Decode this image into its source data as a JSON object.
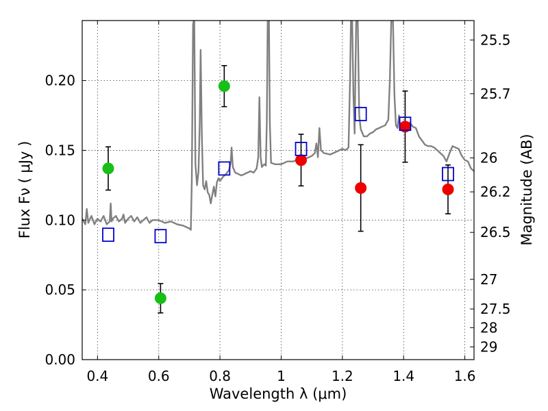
{
  "chart_data": {
    "type": "scatter",
    "xlabel": "Wavelength  λ (μm)",
    "ylabel": "Flux  Fν  ( μJy )",
    "y2label": "Magnitude (AB)",
    "xlim": [
      0.35,
      1.63
    ],
    "ylim": [
      0.0,
      0.243
    ],
    "grid": true,
    "x_ticks": [
      0.4,
      0.6,
      0.8,
      1.0,
      1.2,
      1.4,
      1.6
    ],
    "x_tick_labels": [
      "0.4",
      "0.6",
      "0.8",
      "1",
      "1.2",
      "1.4",
      "1.6"
    ],
    "y_ticks": [
      0.0,
      0.05,
      0.1,
      0.15,
      0.2
    ],
    "y_tick_labels": [
      "0.00",
      "0.05",
      "0.10",
      "0.15",
      "0.20"
    ],
    "mag_ticks": [
      25.5,
      25.7,
      26,
      26.2,
      26.5,
      27,
      27.5,
      28,
      29
    ],
    "colors": {
      "spectrum": "#808080",
      "green": "#17bf17",
      "red": "#ee0000",
      "model": "#0000cc",
      "errorbar": "#000000"
    },
    "series": [
      {
        "marker": "circle",
        "color": "#17bf17",
        "points": [
          {
            "x": 0.435,
            "y": 0.137,
            "err": 0.0155
          },
          {
            "x": 0.606,
            "y": 0.044,
            "err": 0.0105
          },
          {
            "x": 0.814,
            "y": 0.196,
            "err": 0.0147
          }
        ]
      },
      {
        "marker": "circle",
        "color": "#ee0000",
        "points": [
          {
            "x": 1.065,
            "y": 0.143,
            "err": 0.0185
          },
          {
            "x": 1.26,
            "y": 0.123,
            "err": 0.031
          },
          {
            "x": 1.405,
            "y": 0.167,
            "err": 0.0255
          },
          {
            "x": 1.545,
            "y": 0.122,
            "err": 0.0175
          }
        ]
      },
      {
        "marker": "square-open",
        "color": "#0000cc",
        "points": [
          {
            "x": 0.435,
            "y": 0.0895
          },
          {
            "x": 0.606,
            "y": 0.0885
          },
          {
            "x": 0.814,
            "y": 0.137
          },
          {
            "x": 1.065,
            "y": 0.151
          },
          {
            "x": 1.26,
            "y": 0.176
          },
          {
            "x": 1.405,
            "y": 0.169
          },
          {
            "x": 1.545,
            "y": 0.133
          }
        ]
      }
    ],
    "spectrum": [
      [
        0.35,
        0.101
      ],
      [
        0.36,
        0.097
      ],
      [
        0.365,
        0.108
      ],
      [
        0.37,
        0.098
      ],
      [
        0.38,
        0.103
      ],
      [
        0.39,
        0.097
      ],
      [
        0.4,
        0.101
      ],
      [
        0.41,
        0.099
      ],
      [
        0.42,
        0.103
      ],
      [
        0.43,
        0.097
      ],
      [
        0.44,
        0.099
      ],
      [
        0.443,
        0.112
      ],
      [
        0.446,
        0.099
      ],
      [
        0.45,
        0.101
      ],
      [
        0.46,
        0.103
      ],
      [
        0.47,
        0.099
      ],
      [
        0.48,
        0.101
      ],
      [
        0.485,
        0.104
      ],
      [
        0.49,
        0.098
      ],
      [
        0.5,
        0.101
      ],
      [
        0.51,
        0.103
      ],
      [
        0.52,
        0.099
      ],
      [
        0.53,
        0.102
      ],
      [
        0.54,
        0.098
      ],
      [
        0.55,
        0.1
      ],
      [
        0.56,
        0.102
      ],
      [
        0.57,
        0.098
      ],
      [
        0.58,
        0.1
      ],
      [
        0.6,
        0.1
      ],
      [
        0.62,
        0.098
      ],
      [
        0.64,
        0.099
      ],
      [
        0.66,
        0.097
      ],
      [
        0.68,
        0.096
      ],
      [
        0.69,
        0.095
      ],
      [
        0.7,
        0.094
      ],
      [
        0.705,
        0.093
      ],
      [
        0.708,
        0.128
      ],
      [
        0.712,
        0.24
      ],
      [
        0.716,
        0.245
      ],
      [
        0.72,
        0.14
      ],
      [
        0.725,
        0.125
      ],
      [
        0.73,
        0.135
      ],
      [
        0.734,
        0.17
      ],
      [
        0.737,
        0.222
      ],
      [
        0.741,
        0.16
      ],
      [
        0.745,
        0.125
      ],
      [
        0.75,
        0.122
      ],
      [
        0.755,
        0.128
      ],
      [
        0.76,
        0.12
      ],
      [
        0.765,
        0.118
      ],
      [
        0.77,
        0.112
      ],
      [
        0.775,
        0.118
      ],
      [
        0.78,
        0.124
      ],
      [
        0.785,
        0.117
      ],
      [
        0.79,
        0.127
      ],
      [
        0.795,
        0.13
      ],
      [
        0.8,
        0.128
      ],
      [
        0.81,
        0.131
      ],
      [
        0.82,
        0.133
      ],
      [
        0.83,
        0.136
      ],
      [
        0.835,
        0.141
      ],
      [
        0.838,
        0.152
      ],
      [
        0.842,
        0.138
      ],
      [
        0.85,
        0.134
      ],
      [
        0.86,
        0.133
      ],
      [
        0.87,
        0.132
      ],
      [
        0.88,
        0.133
      ],
      [
        0.89,
        0.134
      ],
      [
        0.9,
        0.135
      ],
      [
        0.91,
        0.134
      ],
      [
        0.92,
        0.137
      ],
      [
        0.925,
        0.145
      ],
      [
        0.929,
        0.188
      ],
      [
        0.933,
        0.145
      ],
      [
        0.937,
        0.138
      ],
      [
        0.94,
        0.139
      ],
      [
        0.945,
        0.14
      ],
      [
        0.95,
        0.139
      ],
      [
        0.953,
        0.17
      ],
      [
        0.956,
        0.245
      ],
      [
        0.96,
        0.245
      ],
      [
        0.963,
        0.17
      ],
      [
        0.967,
        0.141
      ],
      [
        0.98,
        0.14
      ],
      [
        1.0,
        0.14
      ],
      [
        1.02,
        0.142
      ],
      [
        1.04,
        0.142
      ],
      [
        1.06,
        0.144
      ],
      [
        1.08,
        0.144
      ],
      [
        1.1,
        0.146
      ],
      [
        1.11,
        0.148
      ],
      [
        1.115,
        0.155
      ],
      [
        1.12,
        0.145
      ],
      [
        1.125,
        0.166
      ],
      [
        1.13,
        0.15
      ],
      [
        1.14,
        0.148
      ],
      [
        1.16,
        0.147
      ],
      [
        1.18,
        0.149
      ],
      [
        1.2,
        0.151
      ],
      [
        1.21,
        0.15
      ],
      [
        1.22,
        0.152
      ],
      [
        1.225,
        0.2
      ],
      [
        1.228,
        0.245
      ],
      [
        1.232,
        0.245
      ],
      [
        1.236,
        0.19
      ],
      [
        1.24,
        0.162
      ],
      [
        1.245,
        0.245
      ],
      [
        1.25,
        0.245
      ],
      [
        1.255,
        0.175
      ],
      [
        1.26,
        0.165
      ],
      [
        1.27,
        0.16
      ],
      [
        1.28,
        0.16
      ],
      [
        1.29,
        0.162
      ],
      [
        1.3,
        0.163
      ],
      [
        1.31,
        0.165
      ],
      [
        1.32,
        0.166
      ],
      [
        1.33,
        0.167
      ],
      [
        1.34,
        0.168
      ],
      [
        1.35,
        0.172
      ],
      [
        1.355,
        0.2
      ],
      [
        1.36,
        0.245
      ],
      [
        1.365,
        0.245
      ],
      [
        1.37,
        0.19
      ],
      [
        1.375,
        0.168
      ],
      [
        1.38,
        0.166
      ],
      [
        1.385,
        0.175
      ],
      [
        1.39,
        0.165
      ],
      [
        1.4,
        0.168
      ],
      [
        1.41,
        0.166
      ],
      [
        1.42,
        0.17
      ],
      [
        1.43,
        0.167
      ],
      [
        1.44,
        0.166
      ],
      [
        1.45,
        0.16
      ],
      [
        1.46,
        0.157
      ],
      [
        1.47,
        0.154
      ],
      [
        1.48,
        0.153
      ],
      [
        1.49,
        0.153
      ],
      [
        1.5,
        0.152
      ],
      [
        1.51,
        0.15
      ],
      [
        1.52,
        0.148
      ],
      [
        1.53,
        0.146
      ],
      [
        1.54,
        0.142
      ],
      [
        1.55,
        0.148
      ],
      [
        1.56,
        0.153
      ],
      [
        1.57,
        0.152
      ],
      [
        1.58,
        0.151
      ],
      [
        1.59,
        0.146
      ],
      [
        1.6,
        0.143
      ],
      [
        1.61,
        0.142
      ],
      [
        1.62,
        0.137
      ],
      [
        1.63,
        0.135
      ]
    ]
  }
}
